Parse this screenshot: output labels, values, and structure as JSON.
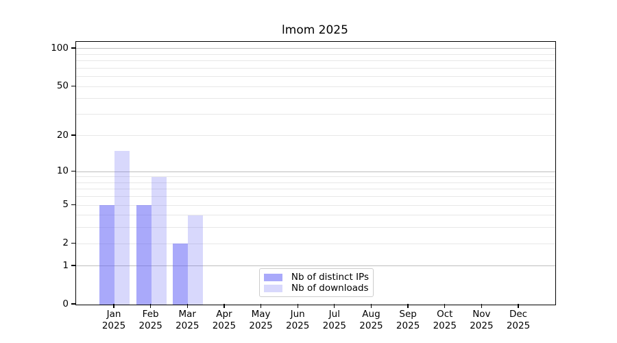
{
  "figure": {
    "title": "lmom 2025"
  },
  "chart_data": {
    "type": "bar",
    "title": "lmom 2025",
    "categories": [
      "Jan 2025",
      "Feb 2025",
      "Mar 2025",
      "Apr 2025",
      "May 2025",
      "Jun 2025",
      "Jul 2025",
      "Aug 2025",
      "Sep 2025",
      "Oct 2025",
      "Nov 2025",
      "Dec 2025"
    ],
    "series": [
      {
        "name": "Nb of distinct IPs",
        "values": [
          5,
          5,
          2,
          0,
          0,
          0,
          0,
          0,
          0,
          0,
          0,
          0
        ],
        "color": "#a9a9f7",
        "fill": "rgba(99,99,245,0.55)"
      },
      {
        "name": "Nb of downloads",
        "values": [
          15,
          9,
          4,
          0,
          0,
          0,
          0,
          0,
          0,
          0,
          0,
          0
        ],
        "color": "#d8d8fc",
        "fill": "rgba(99,99,245,0.25)"
      }
    ],
    "xlabel": "",
    "ylabel": "",
    "yscale": "log1p",
    "ylim": [
      0,
      113
    ],
    "y_ticks": [
      0,
      1,
      2,
      5,
      10,
      20,
      50,
      100
    ],
    "gridlines": {
      "major": [
        1,
        10,
        100
      ],
      "minor": [
        2,
        3,
        4,
        5,
        6,
        7,
        8,
        9,
        20,
        30,
        40,
        50,
        60,
        70,
        80,
        90
      ]
    },
    "legend": {
      "position": "lower center",
      "entries": [
        "Nb of distinct IPs",
        "Nb of downloads"
      ]
    }
  },
  "colors": {
    "background": "#ffffff",
    "spine": "#000000",
    "grid_major": "#bdbdbd",
    "grid_minor": "#e7e7e7",
    "text": "#000000",
    "legend_border": "#cccccc"
  }
}
